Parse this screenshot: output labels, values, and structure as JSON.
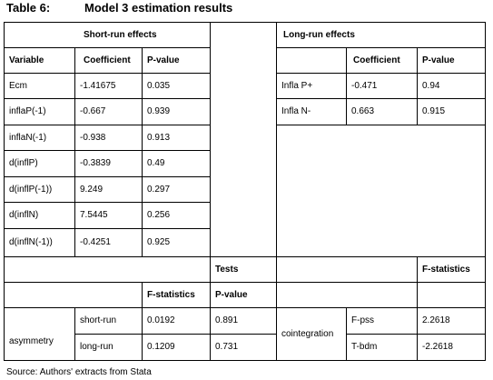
{
  "title": {
    "number": "Table 6:",
    "caption": "Model 3 estimation results"
  },
  "headers": {
    "short_run": "Short-run effects",
    "long_run": "Long-run effects",
    "variable": "Variable",
    "coefficient": "Coefficient",
    "p_value": "P-value",
    "lr_coefficient": "Coefficient",
    "lr_p_value": "P-value",
    "tests": "Tests",
    "f_statistics_right": "F-statistics",
    "f_statistics": "F-statistics",
    "tests_p_value": "P-value"
  },
  "short_run_rows": [
    {
      "variable": "Ecm",
      "coefficient": "-1.41675",
      "p_value": "0.035"
    },
    {
      "variable": "inflaP(-1)",
      "coefficient": "-0.667",
      "p_value": "0.939"
    },
    {
      "variable": "inflaN(-1)",
      "coefficient": "-0.938",
      "p_value": "0.913"
    },
    {
      "variable": "d(inflP)",
      "coefficient": "-0.3839",
      "p_value": "0.49"
    },
    {
      "variable": "d(inflP(-1))",
      "coefficient": "9.249",
      "p_value": "0.297"
    },
    {
      "variable": "d(inflN)",
      "coefficient": "7.5445",
      "p_value": "0.256"
    },
    {
      "variable": "d(inflN(-1))",
      "coefficient": "-0.4251",
      "p_value": "0.925"
    }
  ],
  "long_run_rows": [
    {
      "variable": "Infla P+",
      "coefficient": "-0.471",
      "p_value": "0.94"
    },
    {
      "variable": "Infla N-",
      "coefficient": "0.663",
      "p_value": "0.915"
    }
  ],
  "asymmetry": {
    "label": "asymmetry",
    "rows": [
      {
        "name": "short-run",
        "f_stat": "0.0192",
        "p_value": "0.891"
      },
      {
        "name": "long-run",
        "f_stat": "0.1209",
        "p_value": "0.731"
      }
    ]
  },
  "cointegration": {
    "label": "cointegration",
    "rows": [
      {
        "name": "F-pss",
        "value": "2.2618"
      },
      {
        "name": "T-bdm",
        "value": "-2.2618"
      }
    ]
  },
  "source": "Source: Authors' extracts from Stata"
}
